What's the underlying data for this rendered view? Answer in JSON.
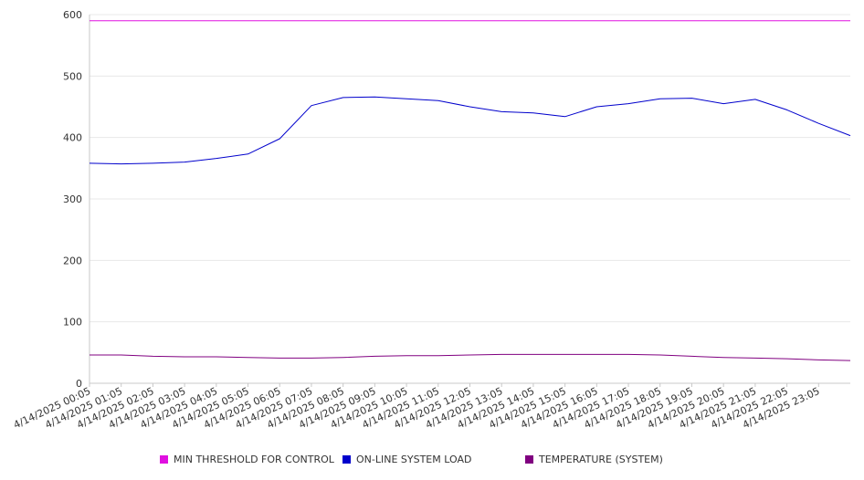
{
  "chart_data": {
    "type": "line",
    "ylim": [
      0,
      600
    ],
    "yticks": [
      0,
      100,
      200,
      300,
      400,
      500,
      600
    ],
    "grid": "horizontal",
    "legend_position": "bottom",
    "xticks": [
      "4/14/2025 00:05",
      "4/14/2025 01:05",
      "4/14/2025 02:05",
      "4/14/2025 03:05",
      "4/14/2025 04:05",
      "4/14/2025 05:05",
      "4/14/2025 06:05",
      "4/14/2025 07:05",
      "4/14/2025 08:05",
      "4/14/2025 09:05",
      "4/14/2025 10:05",
      "4/14/2025 11:05",
      "4/14/2025 12:05",
      "4/14/2025 13:05",
      "4/14/2025 14:05",
      "4/14/2025 15:05",
      "4/14/2025 16:05",
      "4/14/2025 17:05",
      "4/14/2025 18:05",
      "4/14/2025 19:05",
      "4/14/2025 20:05",
      "4/14/2025 21:05",
      "4/14/2025 22:05",
      "4/14/2025 23:05"
    ],
    "x": [
      "00:05",
      "01:05",
      "02:05",
      "03:05",
      "04:05",
      "05:05",
      "06:05",
      "07:05",
      "08:05",
      "09:05",
      "10:05",
      "11:05",
      "12:05",
      "13:05",
      "14:05",
      "15:05",
      "16:05",
      "17:05",
      "18:05",
      "19:05",
      "20:05",
      "21:05",
      "22:05",
      "23:05",
      "00:05"
    ],
    "series": [
      {
        "name": "MIN THRESHOLD FOR CONTROL",
        "color": "#e010e0",
        "values": [
          590,
          590,
          590,
          590,
          590,
          590,
          590,
          590,
          590,
          590,
          590,
          590,
          590,
          590,
          590,
          590,
          590,
          590,
          590,
          590,
          590,
          590,
          590,
          590,
          590
        ]
      },
      {
        "name": "ON-LINE SYSTEM LOAD",
        "color": "#0000cc",
        "values": [
          358,
          357,
          358,
          360,
          366,
          373,
          398,
          452,
          465,
          466,
          463,
          460,
          450,
          442,
          440,
          434,
          450,
          455,
          463,
          464,
          455,
          462,
          445,
          423,
          403
        ]
      },
      {
        "name": "TEMPERATURE (SYSTEM)",
        "color": "#800080",
        "values": [
          46,
          46,
          44,
          43,
          43,
          42,
          41,
          41,
          42,
          44,
          45,
          45,
          46,
          47,
          47,
          47,
          47,
          47,
          46,
          44,
          42,
          41,
          40,
          38,
          37
        ]
      }
    ]
  },
  "legend": {
    "items": [
      {
        "label": "MIN THRESHOLD FOR CONTROL",
        "color": "#e010e0"
      },
      {
        "label": "ON-LINE SYSTEM LOAD",
        "color": "#0000cc"
      },
      {
        "label": "TEMPERATURE (SYSTEM)",
        "color": "#800080"
      }
    ]
  }
}
